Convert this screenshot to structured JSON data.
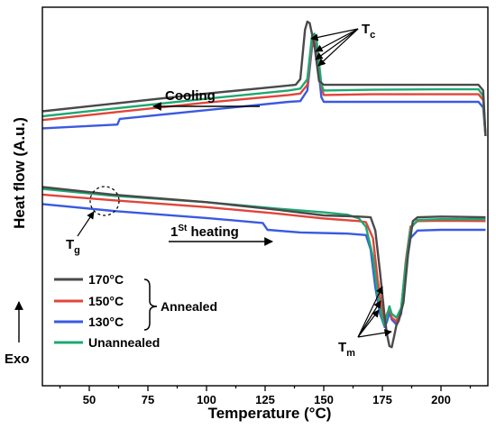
{
  "chart_data": {
    "type": "line",
    "xlabel": "Temperature (°C)",
    "ylabel": "Heat flow (A.u.)",
    "xlim": [
      30,
      220
    ],
    "ylim": [
      0,
      10
    ],
    "y_ticks_labeled": false,
    "x_ticks": [
      50,
      75,
      100,
      125,
      150,
      175,
      200
    ],
    "grid": false,
    "legend": {
      "placement": "bottom-left",
      "entries": [
        "170°C",
        "150°C",
        "130°C",
        "Unannealed"
      ],
      "group_label": "Annealed",
      "group_members": [
        "170°C",
        "150°C",
        "130°C"
      ]
    },
    "annotations": {
      "cooling": "Cooling",
      "heating_main": "1",
      "heating_sup": "St",
      "heating_rest": " heating",
      "tc_main": "T",
      "tc_sub": "c",
      "tg_main": "T",
      "tg_sub": "g",
      "tm_main": "T",
      "tm_sub": "m",
      "exo": "Exo"
    },
    "series": [
      {
        "name": "170°C",
        "color": "#4a4a4a",
        "cooling": [
          [
            30,
            7.25
          ],
          [
            60,
            7.45
          ],
          [
            100,
            7.72
          ],
          [
            130,
            7.9
          ],
          [
            138,
            7.95
          ],
          [
            140,
            8.1
          ],
          [
            142,
            9.4
          ],
          [
            143,
            9.62
          ],
          [
            144,
            9.58
          ],
          [
            146,
            9.0
          ],
          [
            148,
            8.05
          ],
          [
            150,
            7.95
          ],
          [
            170,
            7.95
          ],
          [
            200,
            7.95
          ],
          [
            216,
            7.95
          ],
          [
            218,
            7.8
          ],
          [
            219,
            6.6
          ]
        ],
        "heating": [
          [
            30,
            5.25
          ],
          [
            60,
            5.05
          ],
          [
            100,
            4.85
          ],
          [
            130,
            4.65
          ],
          [
            150,
            4.5
          ],
          [
            165,
            4.47
          ],
          [
            170,
            4.45
          ],
          [
            172,
            4.1
          ],
          [
            174,
            3.0
          ],
          [
            176,
            1.8
          ],
          [
            177,
            1.35
          ],
          [
            178,
            1.05
          ],
          [
            179,
            1.02
          ],
          [
            180,
            1.3
          ],
          [
            181,
            1.6
          ],
          [
            182,
            1.72
          ],
          [
            184,
            2.2
          ],
          [
            186,
            3.5
          ],
          [
            188,
            4.35
          ],
          [
            190,
            4.45
          ],
          [
            200,
            4.47
          ],
          [
            219,
            4.45
          ]
        ]
      },
      {
        "name": "150°C",
        "color": "#e0453a",
        "cooling": [
          [
            30,
            7.02
          ],
          [
            60,
            7.22
          ],
          [
            100,
            7.48
          ],
          [
            135,
            7.68
          ],
          [
            140,
            7.72
          ],
          [
            143,
            7.95
          ],
          [
            145,
            9.05
          ],
          [
            146,
            9.2
          ],
          [
            147,
            9.0
          ],
          [
            149,
            7.9
          ],
          [
            150,
            7.68
          ],
          [
            170,
            7.7
          ],
          [
            200,
            7.7
          ],
          [
            216,
            7.7
          ],
          [
            218,
            7.55
          ],
          [
            219,
            6.6
          ]
        ],
        "heating": [
          [
            30,
            5.05
          ],
          [
            60,
            4.9
          ],
          [
            100,
            4.72
          ],
          [
            130,
            4.55
          ],
          [
            150,
            4.42
          ],
          [
            165,
            4.35
          ],
          [
            168,
            4.32
          ],
          [
            171,
            3.9
          ],
          [
            173,
            2.8
          ],
          [
            175,
            1.95
          ],
          [
            176,
            1.7
          ],
          [
            177,
            1.9
          ],
          [
            178,
            2.05
          ],
          [
            179,
            1.8
          ],
          [
            181,
            1.7
          ],
          [
            183,
            2.0
          ],
          [
            185,
            3.3
          ],
          [
            187,
            4.2
          ],
          [
            190,
            4.35
          ],
          [
            200,
            4.36
          ],
          [
            219,
            4.35
          ]
        ]
      },
      {
        "name": "130°C",
        "color": "#3a5ae0",
        "cooling": [
          [
            30,
            6.8
          ],
          [
            62,
            6.9
          ],
          [
            63,
            7.05
          ],
          [
            100,
            7.28
          ],
          [
            135,
            7.5
          ],
          [
            140,
            7.52
          ],
          [
            143,
            7.8
          ],
          [
            145,
            8.95
          ],
          [
            146,
            9.02
          ],
          [
            147,
            8.8
          ],
          [
            149,
            7.62
          ],
          [
            150,
            7.5
          ],
          [
            170,
            7.5
          ],
          [
            200,
            7.5
          ],
          [
            216,
            7.5
          ],
          [
            218,
            7.35
          ],
          [
            219,
            6.6
          ]
        ],
        "heating": [
          [
            30,
            4.8
          ],
          [
            60,
            4.62
          ],
          [
            100,
            4.43
          ],
          [
            124,
            4.3
          ],
          [
            126,
            4.12
          ],
          [
            140,
            4.05
          ],
          [
            160,
            4.02
          ],
          [
            168,
            3.98
          ],
          [
            170,
            3.6
          ],
          [
            172,
            2.6
          ],
          [
            174,
            1.9
          ],
          [
            176,
            1.55
          ],
          [
            177,
            1.7
          ],
          [
            178,
            1.95
          ],
          [
            179,
            1.75
          ],
          [
            181,
            1.62
          ],
          [
            183,
            1.9
          ],
          [
            185,
            3.1
          ],
          [
            187,
            3.9
          ],
          [
            190,
            4.1
          ],
          [
            200,
            4.12
          ],
          [
            219,
            4.12
          ]
        ]
      },
      {
        "name": "Unannealed",
        "color": "#1fa872",
        "cooling": [
          [
            30,
            7.12
          ],
          [
            60,
            7.32
          ],
          [
            100,
            7.58
          ],
          [
            135,
            7.8
          ],
          [
            140,
            7.85
          ],
          [
            143,
            8.1
          ],
          [
            145,
            9.25
          ],
          [
            146,
            9.3
          ],
          [
            147,
            9.1
          ],
          [
            149,
            7.95
          ],
          [
            150,
            7.8
          ],
          [
            170,
            7.82
          ],
          [
            200,
            7.83
          ],
          [
            216,
            7.83
          ],
          [
            218,
            7.65
          ],
          [
            219,
            6.6
          ]
        ],
        "heating": [
          [
            30,
            5.2
          ],
          [
            60,
            5.02
          ],
          [
            100,
            4.85
          ],
          [
            130,
            4.68
          ],
          [
            150,
            4.58
          ],
          [
            160,
            4.52
          ],
          [
            165,
            4.42
          ],
          [
            168,
            4.2
          ],
          [
            171,
            3.4
          ],
          [
            173,
            2.4
          ],
          [
            175,
            1.75
          ],
          [
            176,
            1.6
          ],
          [
            177,
            1.85
          ],
          [
            178,
            2.1
          ],
          [
            179,
            1.9
          ],
          [
            181,
            1.8
          ],
          [
            183,
            2.05
          ],
          [
            185,
            3.2
          ],
          [
            187,
            4.15
          ],
          [
            190,
            4.38
          ],
          [
            200,
            4.4
          ],
          [
            219,
            4.4
          ]
        ]
      }
    ]
  }
}
